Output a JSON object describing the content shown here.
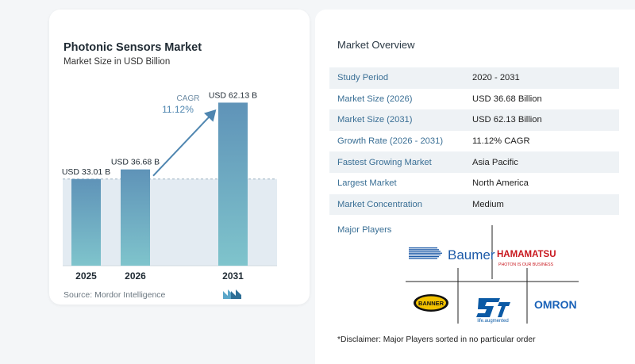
{
  "chart_card": {
    "title": "Photonic Sensors Market",
    "subtitle": "Market Size in USD Billion",
    "source": "Source: Mordor Intelligence",
    "cagr_label": "CAGR",
    "cagr_value": "11.12%"
  },
  "chart_data": {
    "type": "bar",
    "title": "Photonic Sensors Market",
    "subtitle": "Market Size in USD Billion",
    "categories": [
      "2025",
      "2026",
      "2031"
    ],
    "values": [
      33.01,
      36.68,
      62.13
    ],
    "data_labels": [
      "USD 33.01 B",
      "USD 36.68 B",
      "USD 62.13 B"
    ],
    "ylim": [
      0,
      68
    ],
    "annotation": "CAGR 11.12%",
    "colors": {
      "bar_top": "#5f93b8",
      "bar_bottom": "#7fc4cc",
      "band": "#e3ebf2",
      "arrow": "#4f86b0"
    }
  },
  "overview": {
    "heading": "Market Overview",
    "rows": [
      {
        "label": "Study Period",
        "value": "2020 - 2031"
      },
      {
        "label": "Market Size (2026)",
        "value": "USD 36.68 Billion"
      },
      {
        "label": "Market Size (2031)",
        "value": "USD 62.13 Billion"
      },
      {
        "label": "Growth Rate (2026 - 2031)",
        "value": "11.12% CAGR"
      },
      {
        "label": "Fastest Growing Market",
        "value": "Asia Pacific"
      },
      {
        "label": "Largest Market",
        "value": "North America"
      },
      {
        "label": "Market Concentration",
        "value": "Medium"
      }
    ],
    "major_players_heading": "Major Players",
    "players": [
      "Baumer",
      "HAMAMATSU",
      "BANNER",
      "ST",
      "OMRON"
    ],
    "hamamatsu_tagline": "PHOTON IS OUR BUSINESS",
    "st_tagline": "life.augmented",
    "disclaimer": "*Disclaimer: Major Players sorted in no particular order"
  }
}
